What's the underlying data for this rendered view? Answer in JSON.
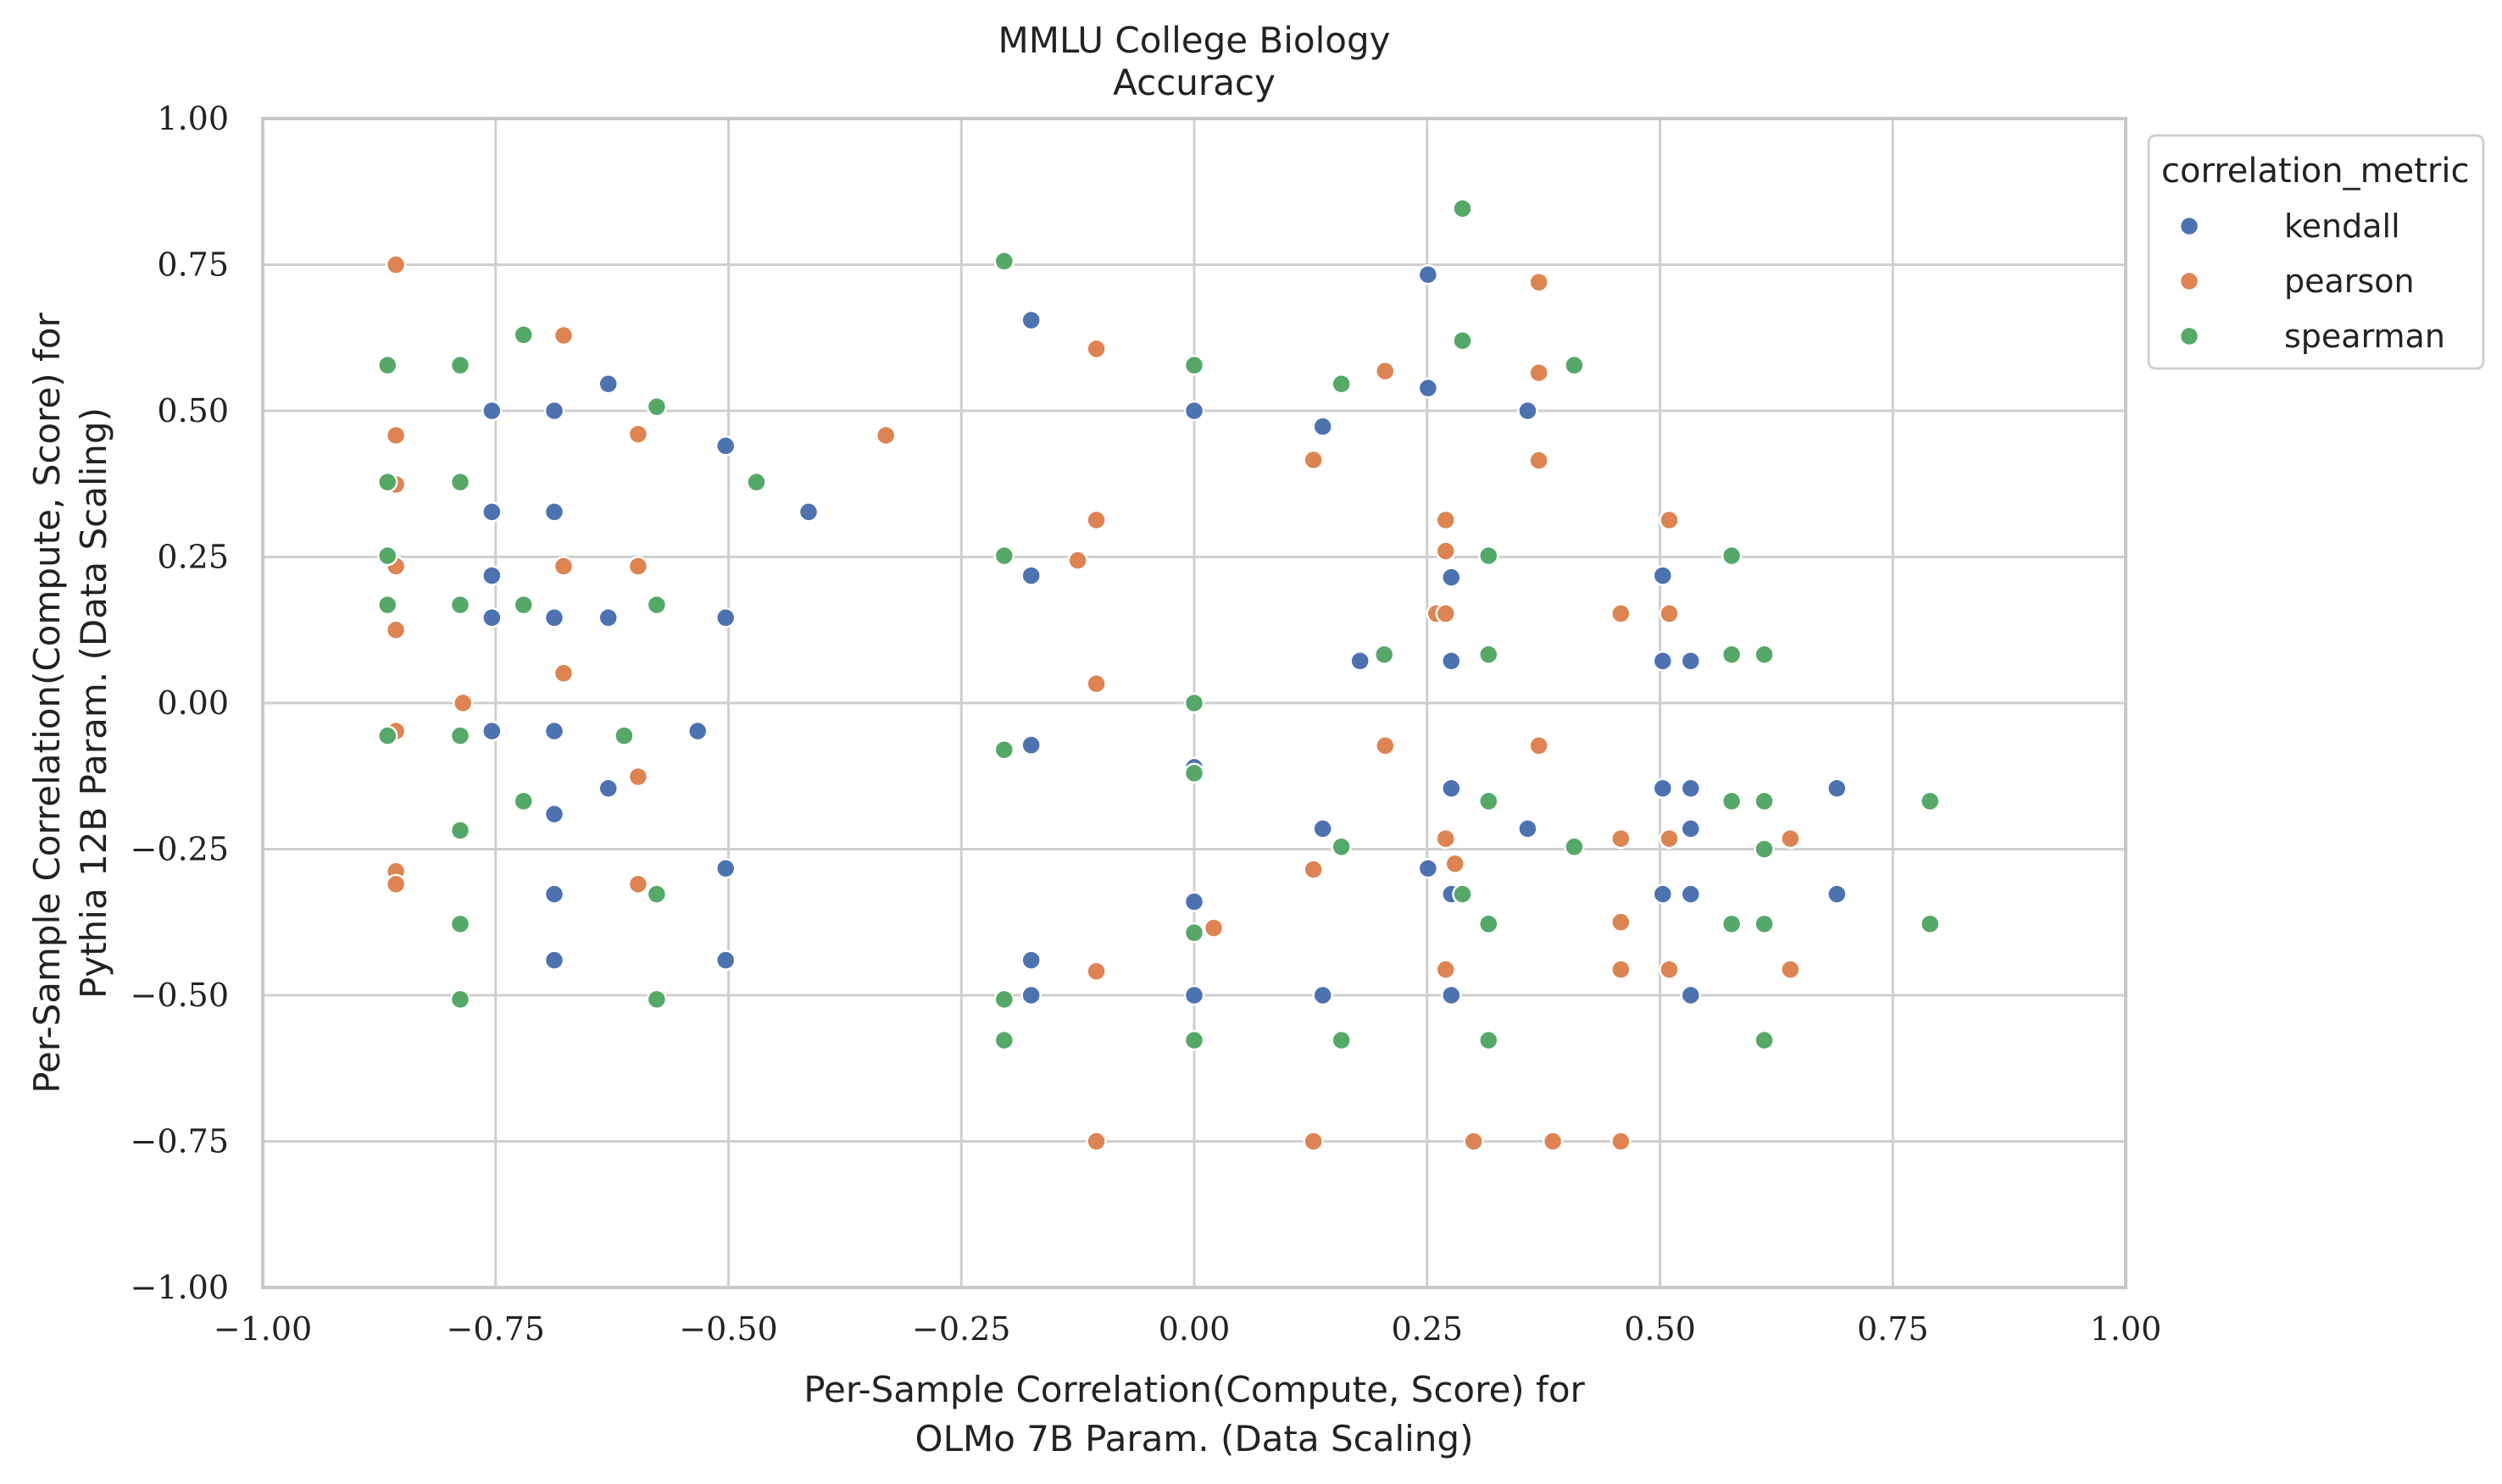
{
  "chart_data": {
    "type": "scatter",
    "title": "MMLU College Biology\nAccuracy",
    "xlabel": "Per-Sample Correlation(Compute, Score) for\nOLMo 7B Param. (Data Scaling)",
    "ylabel": "Per-Sample Correlation(Compute, Score) for\nPythia 12B Param. (Data Scaling)",
    "xlim": [
      -1.0,
      1.0
    ],
    "ylim": [
      -1.0,
      1.0
    ],
    "xticks": [
      -1.0,
      -0.75,
      -0.5,
      -0.25,
      0.0,
      0.25,
      0.5,
      0.75,
      1.0
    ],
    "yticks": [
      -1.0,
      -0.75,
      -0.5,
      -0.25,
      0.0,
      0.25,
      0.5,
      0.75,
      1.0
    ],
    "xtick_labels": [
      "−1.00",
      "−0.75",
      "−0.50",
      "−0.25",
      "0.00",
      "0.25",
      "0.50",
      "0.75",
      "1.00"
    ],
    "ytick_labels": [
      "−1.00",
      "−0.75",
      "−0.50",
      "−0.25",
      "0.00",
      "0.25",
      "0.50",
      "0.75",
      "1.00"
    ],
    "grid": true,
    "legend": {
      "title": "correlation_metric",
      "placement": "outside-upper-right"
    },
    "series": [
      {
        "name": "kendall",
        "color": "#4c72b0",
        "points": [
          [
            -0.754,
            0.5
          ],
          [
            -0.687,
            0.5
          ],
          [
            -0.629,
            0.546
          ],
          [
            -0.503,
            0.44
          ],
          [
            -0.414,
            0.327
          ],
          [
            -0.754,
            0.327
          ],
          [
            -0.687,
            0.327
          ],
          [
            -0.754,
            0.218
          ],
          [
            -0.754,
            0.146
          ],
          [
            -0.687,
            0.146
          ],
          [
            -0.629,
            0.146
          ],
          [
            -0.503,
            0.146
          ],
          [
            -0.754,
            -0.048
          ],
          [
            -0.687,
            -0.048
          ],
          [
            -0.533,
            -0.048
          ],
          [
            -0.629,
            -0.146
          ],
          [
            -0.687,
            -0.19
          ],
          [
            -0.503,
            -0.283
          ],
          [
            -0.687,
            -0.327
          ],
          [
            -0.687,
            -0.44
          ],
          [
            -0.503,
            -0.44
          ],
          [
            -0.175,
            0.655
          ],
          [
            -0.175,
            0.218
          ],
          [
            -0.175,
            -0.072
          ],
          [
            -0.175,
            -0.44
          ],
          [
            -0.175,
            -0.5
          ],
          [
            0.0,
            0.5
          ],
          [
            0.0,
            -0.11
          ],
          [
            0.0,
            -0.34
          ],
          [
            0.0,
            -0.5
          ],
          [
            0.138,
            0.473
          ],
          [
            0.178,
            0.072
          ],
          [
            0.138,
            -0.215
          ],
          [
            0.138,
            -0.5
          ],
          [
            0.251,
            0.733
          ],
          [
            0.251,
            0.539
          ],
          [
            0.276,
            0.215
          ],
          [
            0.276,
            0.072
          ],
          [
            0.276,
            -0.146
          ],
          [
            0.251,
            -0.283
          ],
          [
            0.276,
            -0.327
          ],
          [
            0.276,
            -0.5
          ],
          [
            0.358,
            0.5
          ],
          [
            0.358,
            -0.215
          ],
          [
            0.503,
            0.218
          ],
          [
            0.503,
            0.072
          ],
          [
            0.533,
            0.072
          ],
          [
            0.503,
            -0.146
          ],
          [
            0.533,
            -0.146
          ],
          [
            0.533,
            -0.215
          ],
          [
            0.503,
            -0.327
          ],
          [
            0.533,
            -0.327
          ],
          [
            0.533,
            -0.5
          ],
          [
            0.69,
            -0.146
          ],
          [
            0.69,
            -0.327
          ]
        ]
      },
      {
        "name": "pearson",
        "color": "#dd8452",
        "points": [
          [
            -0.857,
            0.75
          ],
          [
            -0.857,
            0.458
          ],
          [
            -0.857,
            0.374
          ],
          [
            -0.857,
            0.234
          ],
          [
            -0.857,
            0.125
          ],
          [
            -0.857,
            -0.048
          ],
          [
            -0.857,
            -0.288
          ],
          [
            -0.857,
            -0.31
          ],
          [
            -0.785,
            0.0
          ],
          [
            -0.677,
            0.629
          ],
          [
            -0.677,
            0.234
          ],
          [
            -0.677,
            0.051
          ],
          [
            -0.597,
            0.46
          ],
          [
            -0.597,
            0.234
          ],
          [
            -0.597,
            -0.126
          ],
          [
            -0.597,
            -0.31
          ],
          [
            -0.331,
            0.458
          ],
          [
            -0.105,
            0.606
          ],
          [
            -0.105,
            0.313
          ],
          [
            -0.125,
            0.244
          ],
          [
            -0.105,
            0.033
          ],
          [
            -0.105,
            -0.459
          ],
          [
            -0.105,
            -0.75
          ],
          [
            0.021,
            -0.385
          ],
          [
            0.128,
            0.416
          ],
          [
            0.128,
            -0.285
          ],
          [
            0.128,
            -0.75
          ],
          [
            0.205,
            0.568
          ],
          [
            0.205,
            -0.073
          ],
          [
            0.27,
            0.313
          ],
          [
            0.27,
            0.26
          ],
          [
            0.26,
            0.153
          ],
          [
            0.27,
            0.153
          ],
          [
            0.27,
            -0.232
          ],
          [
            0.28,
            -0.275
          ],
          [
            0.27,
            -0.456
          ],
          [
            0.3,
            -0.75
          ],
          [
            0.37,
            0.72
          ],
          [
            0.37,
            0.565
          ],
          [
            0.37,
            0.415
          ],
          [
            0.37,
            -0.073
          ],
          [
            0.385,
            -0.75
          ],
          [
            0.458,
            0.153
          ],
          [
            0.458,
            -0.232
          ],
          [
            0.458,
            -0.375
          ],
          [
            0.458,
            -0.456
          ],
          [
            0.458,
            -0.75
          ],
          [
            0.51,
            0.313
          ],
          [
            0.51,
            0.153
          ],
          [
            0.51,
            -0.232
          ],
          [
            0.51,
            -0.456
          ],
          [
            0.64,
            -0.232
          ],
          [
            0.64,
            -0.456
          ]
        ]
      },
      {
        "name": "spearman",
        "color": "#55a868",
        "points": [
          [
            -0.866,
            0.578
          ],
          [
            -0.866,
            0.378
          ],
          [
            -0.866,
            0.252
          ],
          [
            -0.866,
            0.168
          ],
          [
            -0.866,
            -0.056
          ],
          [
            -0.788,
            0.578
          ],
          [
            -0.788,
            0.378
          ],
          [
            -0.788,
            0.168
          ],
          [
            -0.788,
            -0.056
          ],
          [
            -0.788,
            -0.218
          ],
          [
            -0.788,
            -0.378
          ],
          [
            -0.788,
            -0.507
          ],
          [
            -0.72,
            0.63
          ],
          [
            -0.72,
            0.168
          ],
          [
            -0.72,
            -0.168
          ],
          [
            -0.577,
            0.507
          ],
          [
            -0.577,
            0.168
          ],
          [
            -0.612,
            -0.056
          ],
          [
            -0.577,
            -0.327
          ],
          [
            -0.577,
            -0.507
          ],
          [
            -0.47,
            0.378
          ],
          [
            -0.204,
            0.756
          ],
          [
            -0.204,
            0.252
          ],
          [
            -0.204,
            -0.08
          ],
          [
            -0.204,
            -0.507
          ],
          [
            -0.204,
            -0.577
          ],
          [
            0.0,
            0.578
          ],
          [
            0.0,
            0.0
          ],
          [
            0.0,
            -0.12
          ],
          [
            0.0,
            -0.393
          ],
          [
            0.0,
            -0.577
          ],
          [
            0.158,
            0.546
          ],
          [
            0.158,
            -0.246
          ],
          [
            0.158,
            -0.577
          ],
          [
            0.204,
            0.083
          ],
          [
            0.288,
            0.846
          ],
          [
            0.288,
            0.62
          ],
          [
            0.288,
            -0.327
          ],
          [
            0.316,
            0.252
          ],
          [
            0.316,
            0.083
          ],
          [
            0.316,
            -0.168
          ],
          [
            0.316,
            -0.378
          ],
          [
            0.316,
            -0.577
          ],
          [
            0.408,
            0.578
          ],
          [
            0.408,
            -0.246
          ],
          [
            0.577,
            0.252
          ],
          [
            0.577,
            0.083
          ],
          [
            0.612,
            0.083
          ],
          [
            0.577,
            -0.168
          ],
          [
            0.612,
            -0.168
          ],
          [
            0.612,
            -0.25
          ],
          [
            0.577,
            -0.378
          ],
          [
            0.612,
            -0.378
          ],
          [
            0.612,
            -0.577
          ],
          [
            0.79,
            -0.168
          ],
          [
            0.79,
            -0.378
          ]
        ]
      }
    ]
  }
}
